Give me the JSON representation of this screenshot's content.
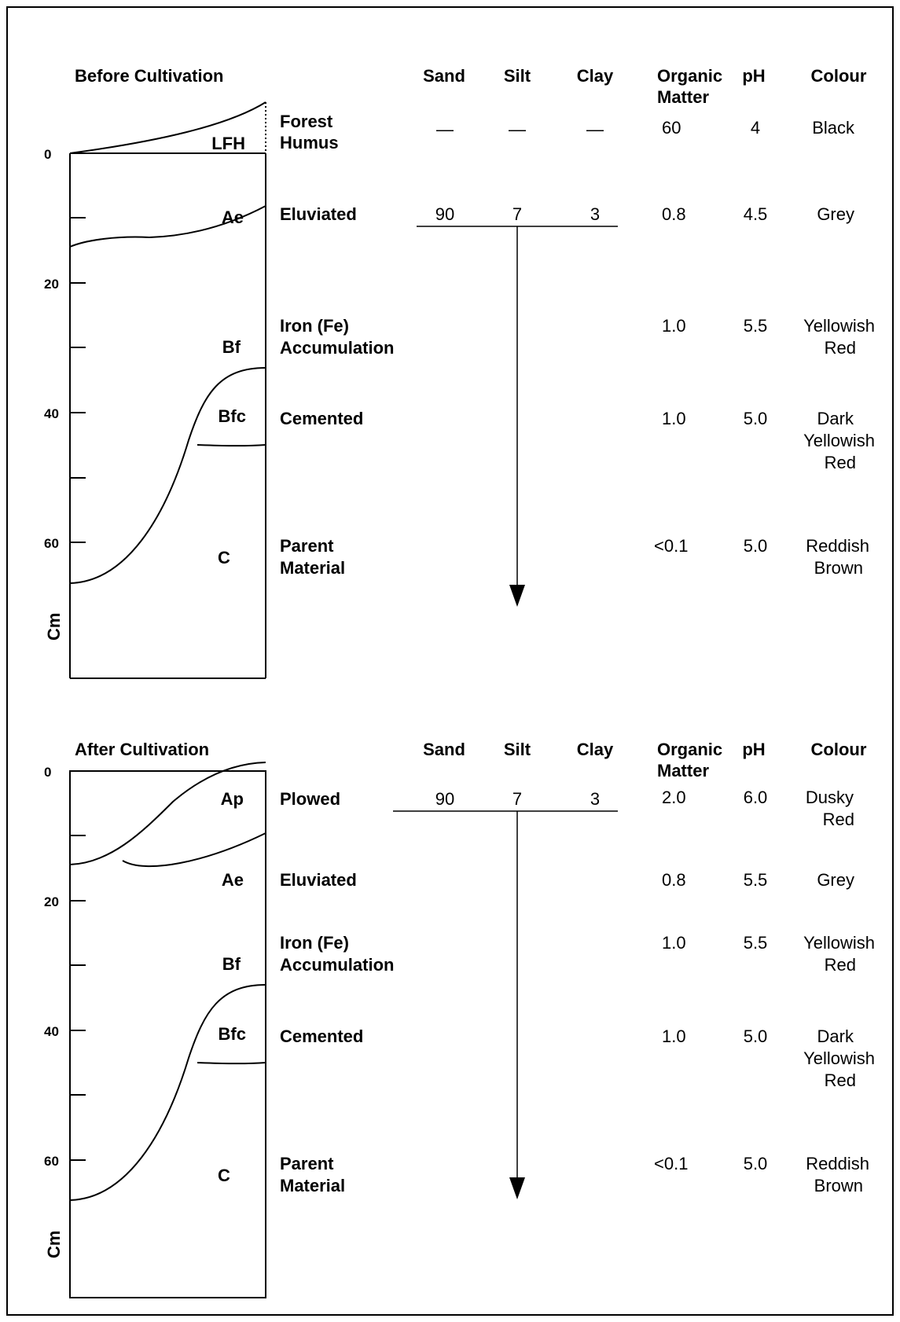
{
  "units_label": "Cm",
  "columns": {
    "sand": "Sand",
    "silt": "Silt",
    "clay": "Clay",
    "organic_matter": [
      "Organic",
      "Matter"
    ],
    "ph": "pH",
    "colour": "Colour"
  },
  "before": {
    "title": "Before Cultivation",
    "depth_ticks": [
      "0",
      "20",
      "40",
      "60"
    ],
    "horizons": [
      "LFH",
      "Ae",
      "Bf",
      "Bfc",
      "C"
    ],
    "texture": {
      "sand": "90",
      "silt": "7",
      "clay": "3"
    },
    "rows": [
      {
        "name": [
          "Forest",
          "Humus"
        ],
        "sand": "—",
        "silt": "—",
        "clay": "—",
        "om": "60",
        "ph": "4",
        "colour": [
          "Black"
        ]
      },
      {
        "name": [
          "Eluviated"
        ],
        "om": "0.8",
        "ph": "4.5",
        "colour": [
          "Grey"
        ]
      },
      {
        "name": [
          "Iron (Fe)",
          "Accumulation"
        ],
        "om": "1.0",
        "ph": "5.5",
        "colour": [
          "Yellowish",
          "Red"
        ]
      },
      {
        "name": [
          "Cemented"
        ],
        "om": "1.0",
        "ph": "5.0",
        "colour": [
          "Dark",
          "Yellowish",
          "Red"
        ]
      },
      {
        "name": [
          "Parent",
          "Material"
        ],
        "om": "<0.1",
        "ph": "5.0",
        "colour": [
          "Reddish",
          "Brown"
        ]
      }
    ]
  },
  "after": {
    "title": "After Cultivation",
    "depth_ticks": [
      "0",
      "20",
      "40",
      "60"
    ],
    "horizons": [
      "Ap",
      "Ae",
      "Bf",
      "Bfc",
      "C"
    ],
    "texture": {
      "sand": "90",
      "silt": "7",
      "clay": "3"
    },
    "rows": [
      {
        "name": [
          "Plowed"
        ],
        "om": "2.0",
        "ph": "6.0",
        "colour": [
          "Dusky",
          "Red"
        ]
      },
      {
        "name": [
          "Eluviated"
        ],
        "om": "0.8",
        "ph": "5.5",
        "colour": [
          "Grey"
        ]
      },
      {
        "name": [
          "Iron (Fe)",
          "Accumulation"
        ],
        "om": "1.0",
        "ph": "5.5",
        "colour": [
          "Yellowish",
          "Red"
        ]
      },
      {
        "name": [
          "Cemented"
        ],
        "om": "1.0",
        "ph": "5.0",
        "colour": [
          "Dark",
          "Yellowish",
          "Red"
        ]
      },
      {
        "name": [
          "Parent",
          "Material"
        ],
        "om": "<0.1",
        "ph": "5.0",
        "colour": [
          "Reddish",
          "Brown"
        ]
      }
    ]
  }
}
